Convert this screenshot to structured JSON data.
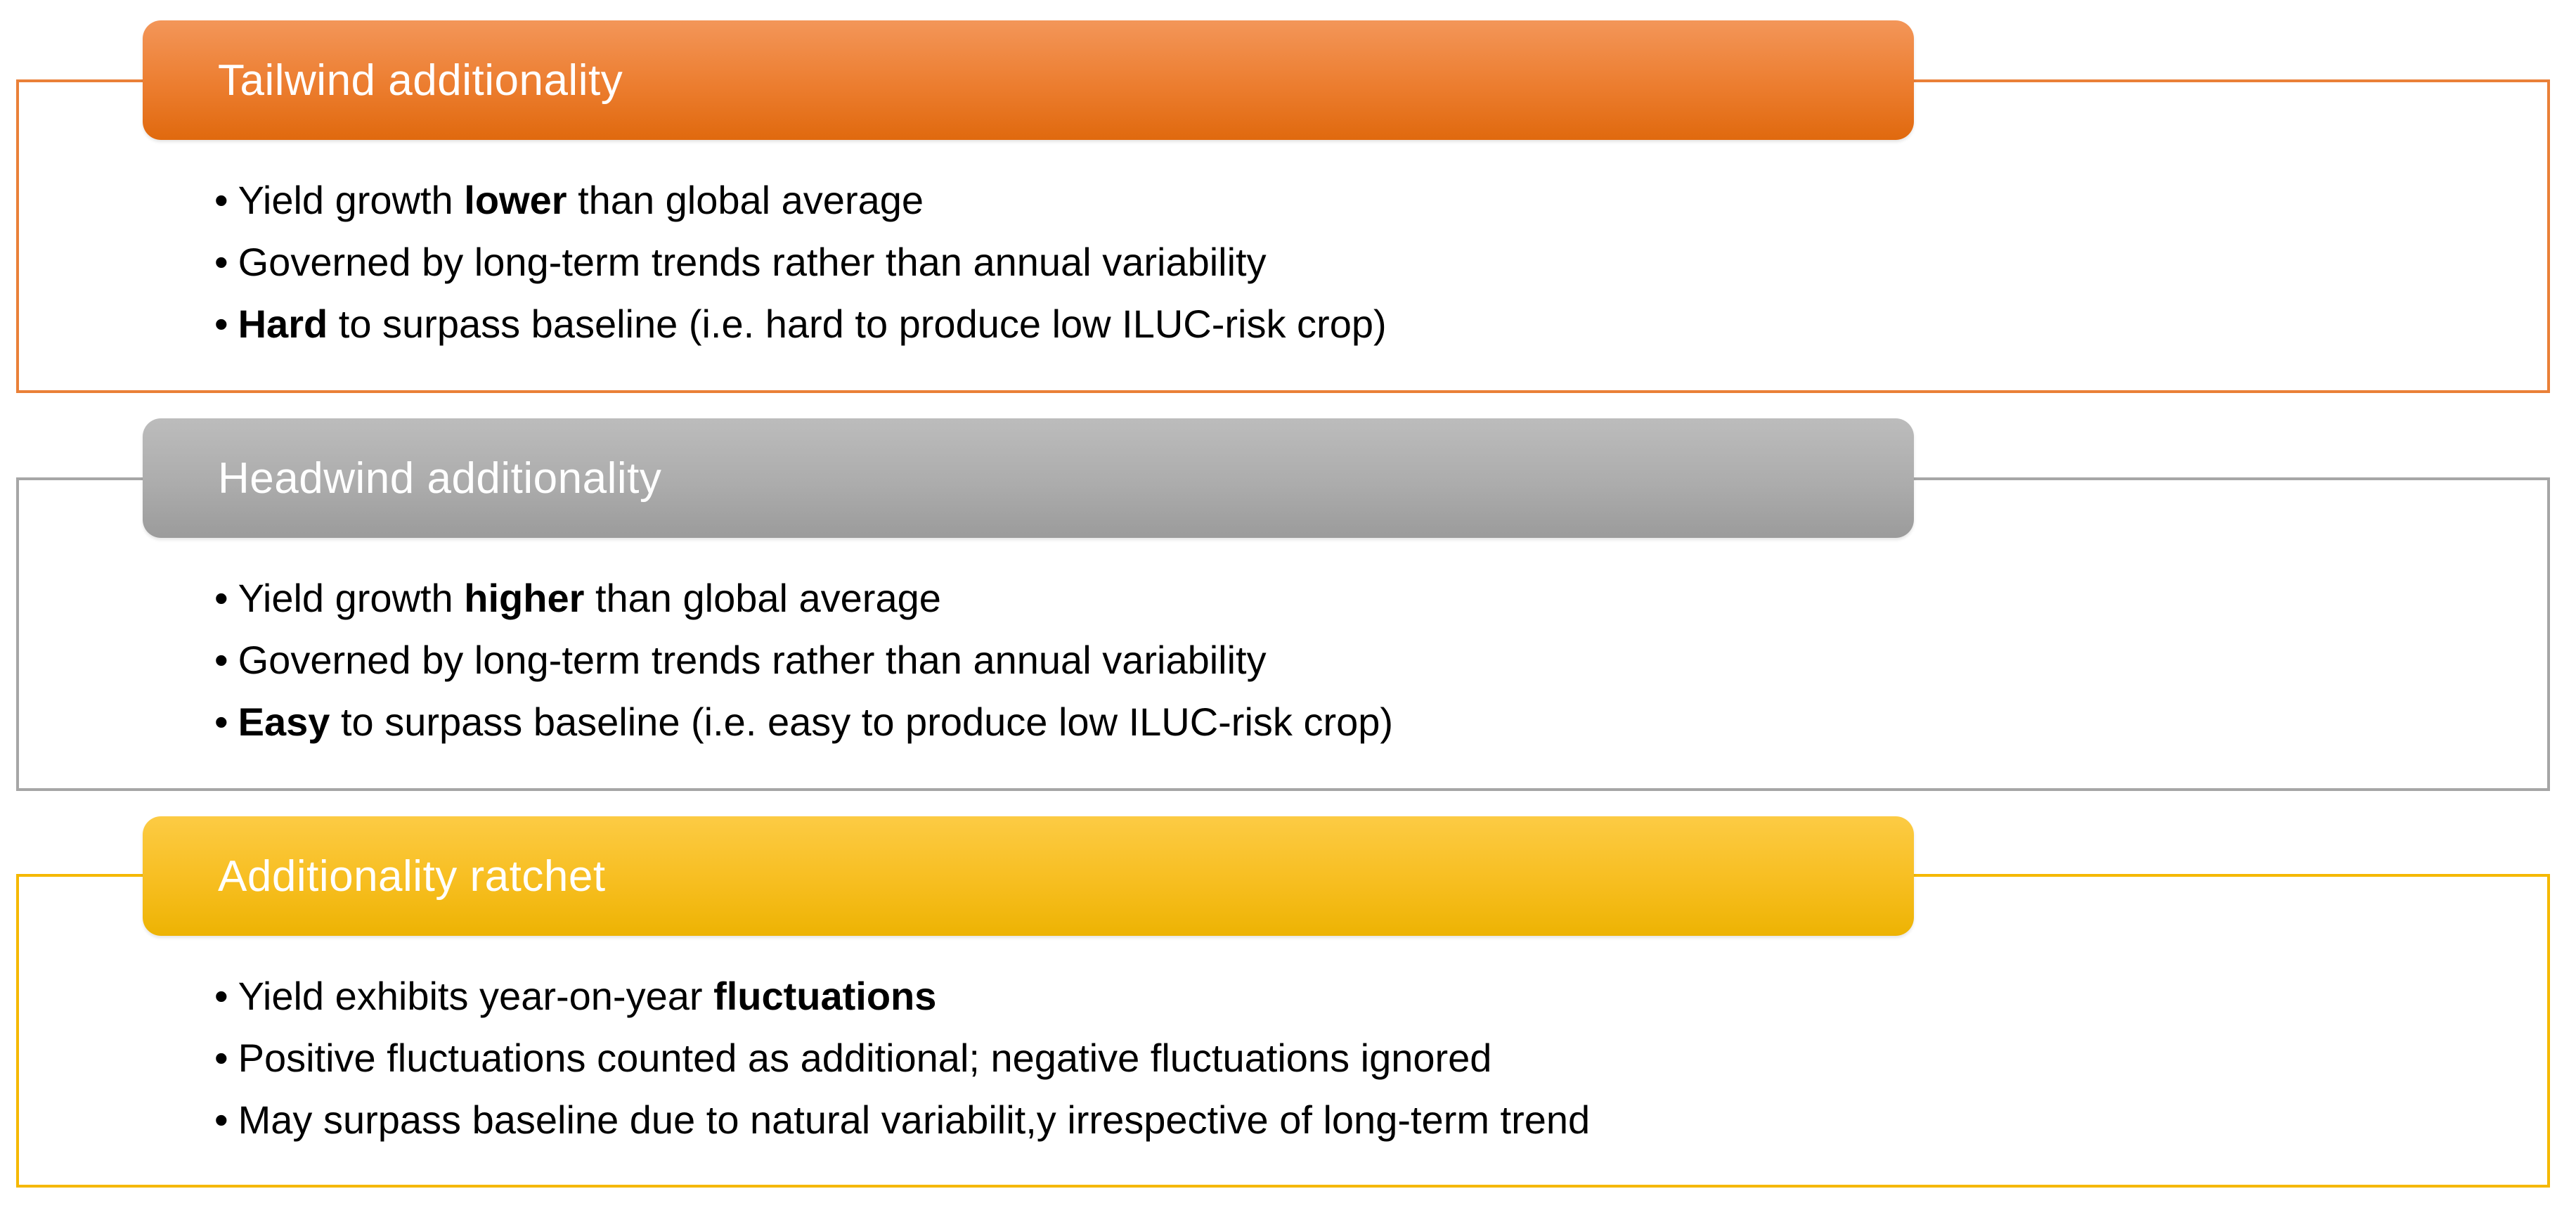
{
  "page": {
    "background_color": "#FFFFFF",
    "bullet_text_color": "#000000"
  },
  "sections": [
    {
      "title": "Tailwind additionality",
      "title_color": "#FFFFFF",
      "accent_color": "#ED7D31",
      "header_gradient_top": "#F39659",
      "header_gradient_bottom": "#E0690E",
      "border_color": "#EA8038",
      "bullets": [
        {
          "pre": "Yield growth ",
          "bold": "lower",
          "post": " than global average"
        },
        {
          "pre": "Governed by long-term trends rather than annual variability",
          "bold": "",
          "post": ""
        },
        {
          "pre": "",
          "bold": "Hard",
          "post": " to surpass baseline (i.e. hard to produce low ILUC-risk crop)"
        }
      ]
    },
    {
      "title": "Headwind additionality",
      "title_color": "#FFFFFF",
      "accent_color": "#A5A5A5",
      "header_gradient_top": "#BCBCBC",
      "header_gradient_bottom": "#9B9B9B",
      "border_color": "#A6A6A6",
      "bullets": [
        {
          "pre": "Yield growth ",
          "bold": "higher",
          "post": " than global average"
        },
        {
          "pre": "Governed by long-term trends rather than annual variability",
          "bold": "",
          "post": ""
        },
        {
          "pre": "",
          "bold": "Easy",
          "post": " to surpass baseline (i.e. easy to produce low ILUC-risk crop)"
        }
      ]
    },
    {
      "title": "Additionality ratchet",
      "title_color": "#FFFFFF",
      "accent_color": "#FFC000",
      "header_gradient_top": "#FCCB44",
      "header_gradient_bottom": "#EDB303",
      "border_color": "#F5B800",
      "bullets": [
        {
          "pre": "Yield exhibits year-on-year ",
          "bold": "fluctuations",
          "post": ""
        },
        {
          "pre": "Positive fluctuations counted as additional; negative fluctuations ignored",
          "bold": "",
          "post": ""
        },
        {
          "pre": "May surpass baseline due to natural variabilit,y irrespective of long-term trend",
          "bold": "",
          "post": ""
        }
      ]
    }
  ]
}
